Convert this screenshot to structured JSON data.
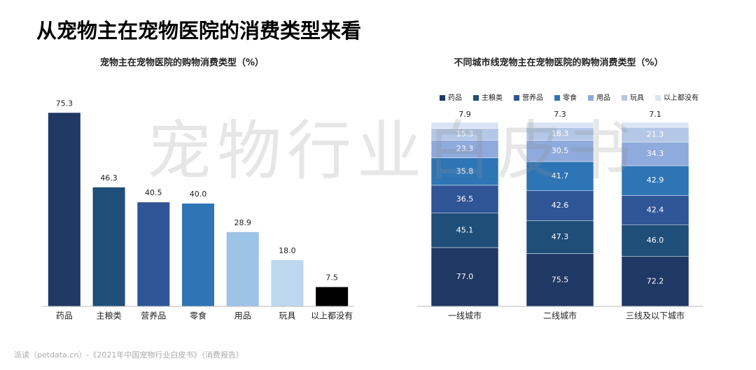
{
  "title": "从宠物主在宠物医院的消费类型来看",
  "watermark": "宠物行业白皮书",
  "footer": "派读（petdata.cn）-《2021年中国宠物行业白皮书》（消费报告）",
  "chart_data": [
    {
      "type": "bar",
      "title": "宠物主在宠物医院的购物消费类型（%）",
      "categories": [
        "药品",
        "主粮类",
        "营养品",
        "零食",
        "用品",
        "玩具",
        "以上都没有"
      ],
      "values": [
        75.3,
        46.3,
        40.5,
        40.0,
        28.9,
        18.0,
        7.5
      ],
      "value_labels": [
        "75.3",
        "46.3",
        "40.5",
        "40.0",
        "28.9",
        "18.0",
        "7.5"
      ],
      "colors": [
        "#1f3864",
        "#1f4e79",
        "#2f5597",
        "#2e75b6",
        "#9dc3e6",
        "#bdd7ee",
        "#000000"
      ],
      "ylim": [
        0,
        80
      ]
    },
    {
      "type": "stacked_bar",
      "stacking": "percent",
      "title": "不同城市线宠物主在宠物医院的购物消费类型（%）",
      "legend": "top",
      "categories": [
        "一线城市",
        "二线城市",
        "三线及以下城市"
      ],
      "series": [
        {
          "name": "药品",
          "color": "#1f3864",
          "values": [
            77.0,
            75.5,
            72.2
          ],
          "value_labels": [
            "77.0",
            "75.5",
            "72.2"
          ]
        },
        {
          "name": "主粮类",
          "color": "#1f4e79",
          "values": [
            45.1,
            47.3,
            46.0
          ],
          "value_labels": [
            "45.1",
            "47.3",
            "46.0"
          ]
        },
        {
          "name": "营养品",
          "color": "#2f5597",
          "values": [
            36.5,
            42.6,
            42.4
          ],
          "value_labels": [
            "36.5",
            "42.6",
            "42.4"
          ]
        },
        {
          "name": "零食",
          "color": "#2e75b6",
          "values": [
            35.8,
            41.7,
            42.9
          ],
          "value_labels": [
            "35.8",
            "41.7",
            "42.9"
          ]
        },
        {
          "name": "用品",
          "color": "#8faadc",
          "values": [
            23.3,
            30.5,
            34.3
          ],
          "value_labels": [
            "23.3",
            "30.5",
            "34.3"
          ]
        },
        {
          "name": "玩具",
          "color": "#b4c7e7",
          "values": [
            15.3,
            18.3,
            21.3
          ],
          "value_labels": [
            "15.3",
            "18.3",
            "21.3"
          ]
        },
        {
          "name": "以上都没有",
          "color": "#dae3f3",
          "values": [
            7.9,
            7.3,
            7.1
          ],
          "value_labels": [
            "7.9",
            "7.3",
            "7.1"
          ]
        }
      ]
    }
  ]
}
